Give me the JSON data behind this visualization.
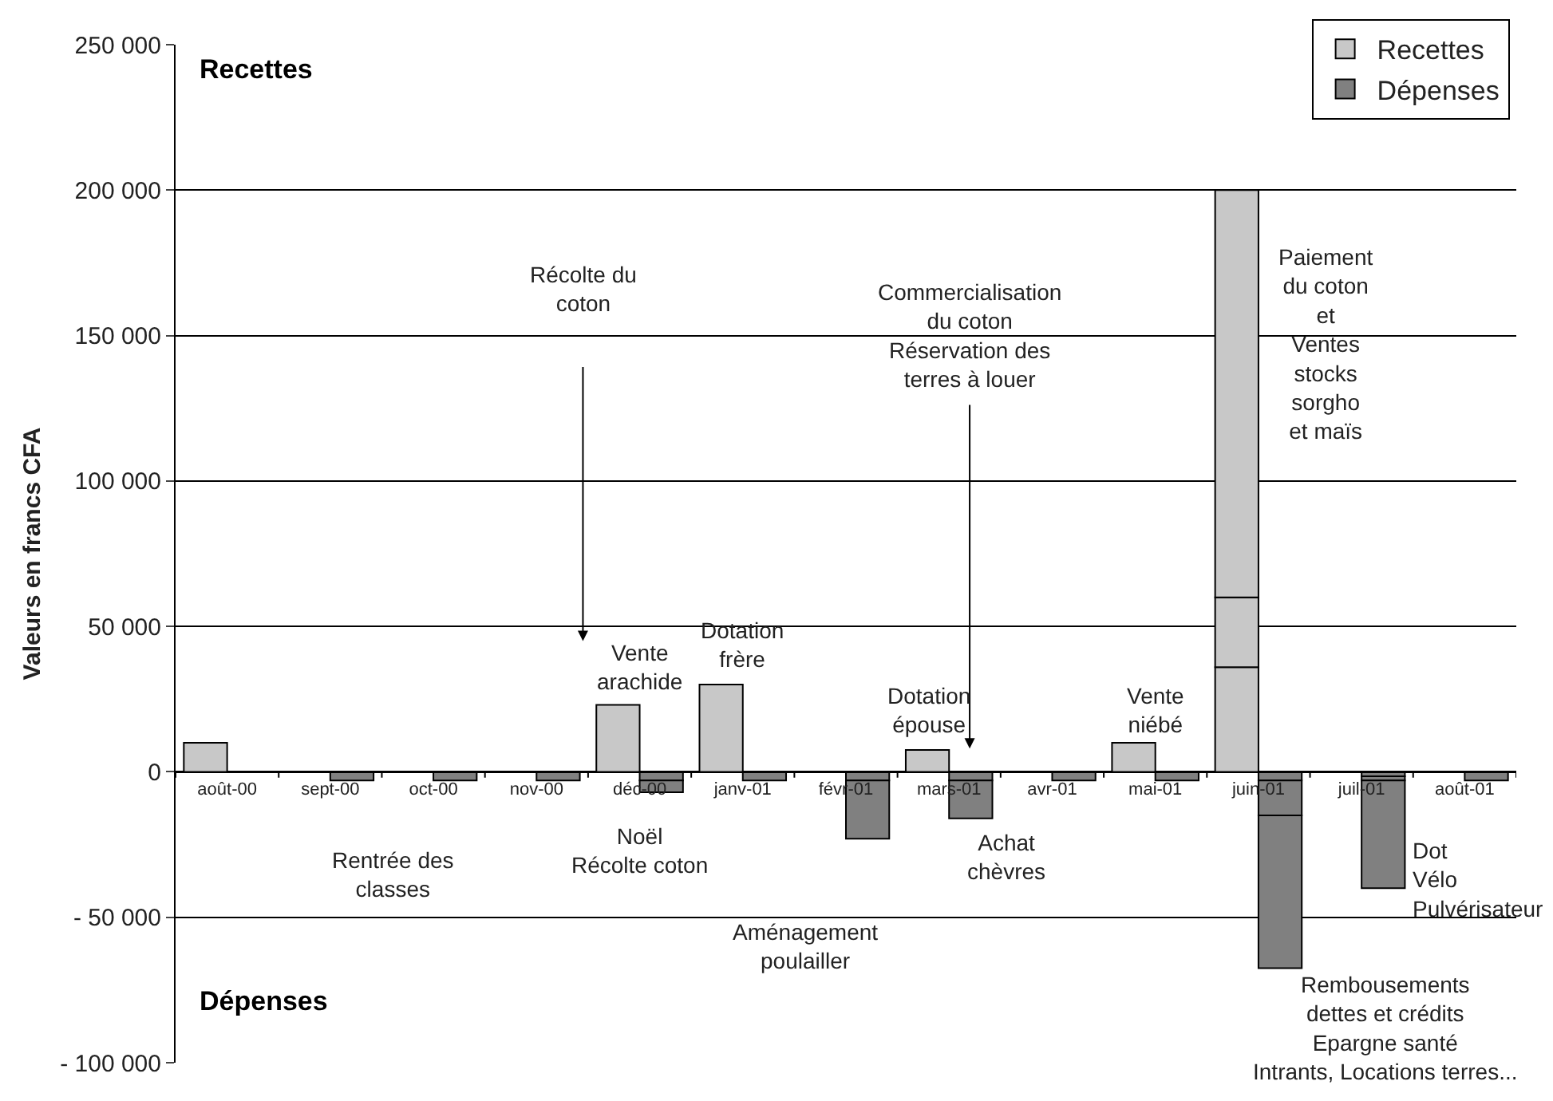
{
  "chart_data": {
    "type": "bar",
    "stacked": true,
    "ylabel": "Valeurs en francs CFA",
    "categories": [
      "août-00",
      "sept-00",
      "oct-00",
      "nov-00",
      "déc-00",
      "janv-01",
      "févr-01",
      "mars-01",
      "avr-01",
      "mai-01",
      "juin-01",
      "juil-01",
      "août-01"
    ],
    "series": [
      {
        "name": "Recettes",
        "color": "#c8c8c8",
        "values": [
          10000,
          null,
          null,
          null,
          23000,
          30000,
          null,
          7500,
          null,
          10000,
          36000,
          null,
          null
        ]
      },
      {
        "color": "#c8c8c8",
        "values": [
          null,
          null,
          null,
          null,
          null,
          null,
          null,
          null,
          null,
          null,
          24000,
          null,
          null
        ]
      },
      {
        "color": "#c8c8c8",
        "values": [
          null,
          null,
          null,
          null,
          null,
          null,
          null,
          null,
          null,
          null,
          140000,
          null,
          null
        ]
      },
      {
        "name": "Dépenses",
        "color": "#808080",
        "values": [
          null,
          -3000,
          -3000,
          -3000,
          -3000,
          -3000,
          -3000,
          -3000,
          -3000,
          -3000,
          -3000,
          -1500,
          -3000
        ]
      },
      {
        "color": "#808080",
        "values": [
          null,
          null,
          null,
          null,
          -4000,
          null,
          -20000,
          -13000,
          null,
          null,
          -12000,
          -1500,
          null
        ]
      },
      {
        "color": "#808080",
        "values": [
          null,
          null,
          null,
          null,
          null,
          null,
          null,
          null,
          null,
          null,
          -52500,
          -37000,
          null
        ]
      }
    ],
    "ylim": [
      -100000,
      250000
    ],
    "yticks": [
      {
        "value": -100000,
        "label": "- 100 000"
      },
      {
        "value": -50000,
        "label": "- 50 000"
      },
      0,
      {
        "value": 50000,
        "label": "50 000"
      },
      {
        "value": 100000,
        "label": "100 000"
      },
      {
        "value": 150000,
        "label": "150 000"
      },
      {
        "value": 200000,
        "label": "200 000"
      },
      {
        "value": 250000,
        "label": "250 000"
      }
    ],
    "grid": "y",
    "legend": "top right",
    "annotations": [
      "Récolte du\ncoton",
      "Commercialisation\ndu coton\nRéservation des\nterres à louer",
      "Recettes",
      "Dépenses",
      "Vente\narachide",
      "Dotation\nfrère",
      "Dotation\népouse",
      "Vente\nniébé",
      "Paiement\ndu coton\net\nVentes\nstocks\nsorgho\net maïs",
      "Rentrée des\nclasses",
      "Noël\nRécolte coton",
      "Aménagement\npoulailler",
      "Achat\nchèvres",
      "Dot\nVélo\nPulvérisateur",
      "Rembousements\ndettes et crédits\nEpargne santé\nIntrants, Locations terres..."
    ]
  }
}
